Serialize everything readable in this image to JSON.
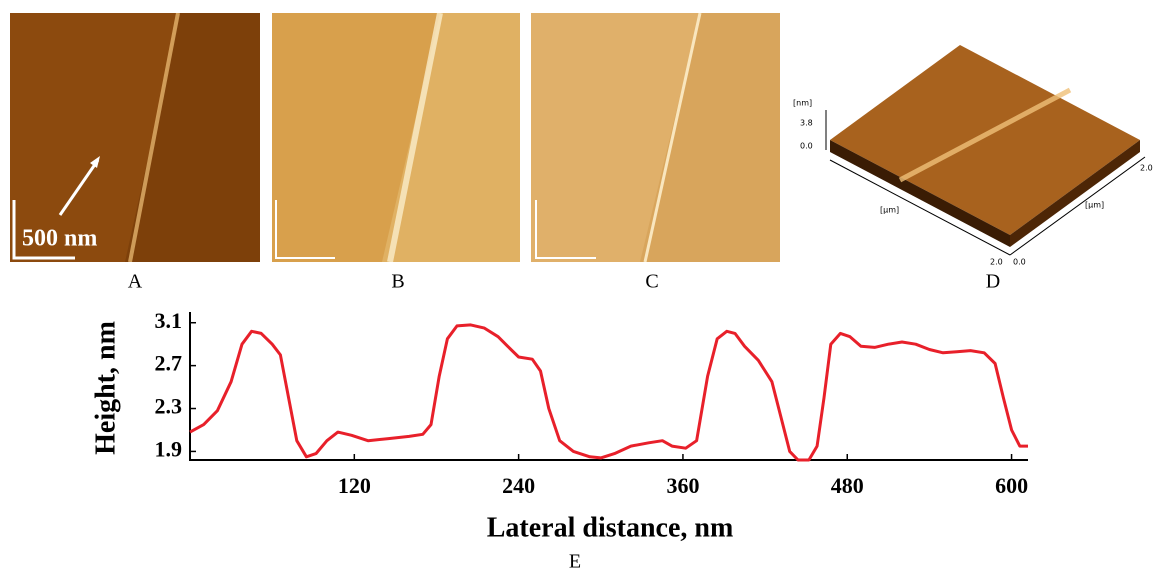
{
  "panels": {
    "a": "A",
    "b": "B",
    "c": "C",
    "d": "D",
    "e": "E"
  },
  "scale_bar": "500 nm",
  "panel_d": {
    "z_unit": "[nm]",
    "z_max": "3.8",
    "z_min": "0.0",
    "x_unit": "[µm]",
    "x_max": "2.0",
    "x_min": "0.0",
    "y_unit": "[µm]",
    "y_max": "2.0"
  },
  "chart_data": {
    "type": "line",
    "x_label": "Lateral distance, nm",
    "y_label": "Height, nm",
    "x": [
      0,
      10,
      20,
      30,
      38,
      45,
      52,
      60,
      66,
      72,
      78,
      85,
      92,
      100,
      108,
      118,
      130,
      145,
      160,
      170,
      176,
      182,
      188,
      195,
      205,
      215,
      225,
      232,
      240,
      250,
      256,
      262,
      270,
      280,
      292,
      300,
      310,
      322,
      335,
      345,
      352,
      362,
      370,
      378,
      385,
      392,
      398,
      405,
      415,
      425,
      432,
      438,
      444,
      452,
      458,
      463,
      468,
      475,
      482,
      490,
      500,
      510,
      520,
      530,
      540,
      550,
      560,
      570,
      580,
      588,
      594,
      600,
      606,
      612
    ],
    "series": [
      {
        "color": "#e8202a",
        "values": [
          2.08,
          2.15,
          2.28,
          2.55,
          2.9,
          3.02,
          3.0,
          2.9,
          2.8,
          2.4,
          2.0,
          1.85,
          1.88,
          2.0,
          2.08,
          2.05,
          2.0,
          2.02,
          2.04,
          2.06,
          2.15,
          2.6,
          2.95,
          3.07,
          3.08,
          3.05,
          2.97,
          2.88,
          2.78,
          2.76,
          2.65,
          2.3,
          2.0,
          1.9,
          1.85,
          1.84,
          1.88,
          1.95,
          1.98,
          2.0,
          1.95,
          1.93,
          2.0,
          2.6,
          2.95,
          3.02,
          3.0,
          2.88,
          2.75,
          2.55,
          2.2,
          1.9,
          1.82,
          1.82,
          1.95,
          2.4,
          2.9,
          3.0,
          2.97,
          2.88,
          2.87,
          2.9,
          2.92,
          2.9,
          2.85,
          2.82,
          2.83,
          2.84,
          2.82,
          2.72,
          2.4,
          2.1,
          1.95,
          1.95
        ]
      }
    ],
    "xlim": [
      0,
      612
    ],
    "ylim": [
      1.82,
      3.2
    ],
    "xticks": [
      120,
      240,
      360,
      480,
      600
    ],
    "yticks": [
      1.9,
      2.3,
      2.7,
      3.1
    ],
    "grid": false
  }
}
